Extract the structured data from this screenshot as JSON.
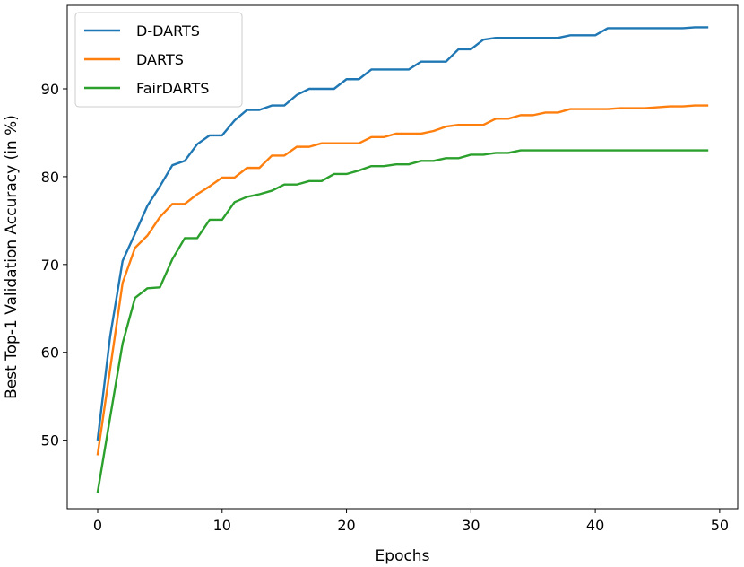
{
  "chart_data": {
    "type": "line",
    "title": "",
    "xlabel": "Epochs",
    "ylabel": "Best Top-1 Validation Accuracy (in %)",
    "xlim": [
      -2.45,
      51.45
    ],
    "ylim": [
      42.2,
      99.5
    ],
    "xticks": [
      0,
      10,
      20,
      30,
      40,
      50
    ],
    "yticks": [
      50,
      60,
      70,
      80,
      90
    ],
    "legend_position": "upper-left",
    "x": [
      0,
      1,
      2,
      3,
      4,
      5,
      6,
      7,
      8,
      9,
      10,
      11,
      12,
      13,
      14,
      15,
      16,
      17,
      18,
      19,
      20,
      21,
      22,
      23,
      24,
      25,
      26,
      27,
      28,
      29,
      30,
      31,
      32,
      33,
      34,
      35,
      36,
      37,
      38,
      39,
      40,
      41,
      42,
      43,
      44,
      45,
      46,
      47,
      48,
      49
    ],
    "series": [
      {
        "name": "D-DARTS",
        "color": "#1f77b4",
        "values": [
          50.1,
          61.8,
          70.4,
          73.5,
          76.7,
          78.9,
          81.3,
          81.8,
          83.7,
          84.7,
          84.7,
          86.4,
          87.6,
          87.6,
          88.1,
          88.1,
          89.3,
          90.0,
          90.0,
          90.0,
          91.1,
          91.1,
          92.2,
          92.2,
          92.2,
          92.2,
          93.1,
          93.1,
          93.1,
          94.5,
          94.5,
          95.6,
          95.8,
          95.8,
          95.8,
          95.8,
          95.8,
          95.8,
          96.1,
          96.1,
          96.1,
          96.9,
          96.9,
          96.9,
          96.9,
          96.9,
          96.9,
          96.9,
          97.0,
          97.0
        ]
      },
      {
        "name": "DARTS",
        "color": "#ff7f0e",
        "values": [
          48.4,
          58.1,
          67.9,
          71.9,
          73.3,
          75.4,
          76.9,
          76.9,
          78.0,
          78.9,
          79.9,
          79.9,
          81.0,
          81.0,
          82.4,
          82.4,
          83.4,
          83.4,
          83.8,
          83.8,
          83.8,
          83.8,
          84.5,
          84.5,
          84.9,
          84.9,
          84.9,
          85.2,
          85.7,
          85.9,
          85.9,
          85.9,
          86.6,
          86.6,
          87.0,
          87.0,
          87.3,
          87.3,
          87.7,
          87.7,
          87.7,
          87.7,
          87.8,
          87.8,
          87.8,
          87.9,
          88.0,
          88.0,
          88.1,
          88.1
        ]
      },
      {
        "name": "FairDARTS",
        "color": "#2ca02c",
        "values": [
          44.1,
          52.6,
          61.0,
          66.2,
          67.3,
          67.4,
          70.6,
          73.0,
          73.0,
          75.1,
          75.1,
          77.1,
          77.7,
          78.0,
          78.4,
          79.1,
          79.1,
          79.5,
          79.5,
          80.3,
          80.3,
          80.7,
          81.2,
          81.2,
          81.4,
          81.4,
          81.8,
          81.8,
          82.1,
          82.1,
          82.5,
          82.5,
          82.7,
          82.7,
          83.0,
          83.0,
          83.0,
          83.0,
          83.0,
          83.0,
          83.0,
          83.0,
          83.0,
          83.0,
          83.0,
          83.0,
          83.0,
          83.0,
          83.0,
          83.0
        ]
      }
    ]
  }
}
